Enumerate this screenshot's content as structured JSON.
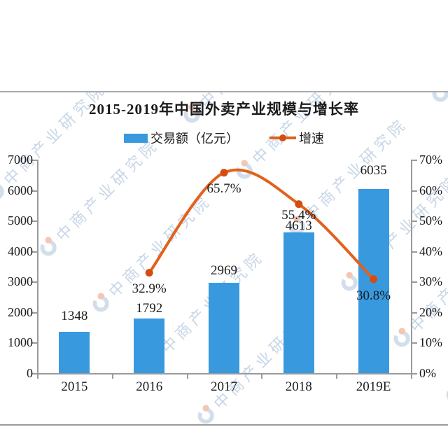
{
  "chart": {
    "title": "2015-2019年中国外卖产业规模与增长率",
    "legend": [
      {
        "label": "交易额（亿元）",
        "type": "bar",
        "color": "#3899df"
      },
      {
        "label": "增速",
        "type": "line",
        "color": "#e2611b"
      }
    ]
  },
  "watermark": {
    "text": "中商产业研究院",
    "logo": "cm-crescent-logo",
    "text_color": "#8fadd0",
    "logo_orange": "#e8916b",
    "logo_blue": "#a9bfd8"
  },
  "colors": {
    "bar": "#3899df",
    "line": "#e2611b",
    "marker": "#d54c12",
    "axis": "#9a9a9a",
    "text": "#1b1b1b",
    "divider": "#ababab"
  },
  "chart_data": {
    "type": "bar+line",
    "categories": [
      "2015",
      "2016",
      "2017",
      "2018",
      "2019E"
    ],
    "series": [
      {
        "name": "交易额（亿元）",
        "type": "bar",
        "axis": "left",
        "values": [
          1348,
          1792,
          2969,
          4613,
          6035
        ],
        "labels": [
          "1348",
          "1792",
          "2969",
          "4613",
          "6035"
        ],
        "color": "#3899df"
      },
      {
        "name": "增速",
        "type": "line",
        "axis": "right",
        "values": [
          null,
          32.9,
          65.7,
          55.4,
          30.8
        ],
        "labels": [
          "",
          "32.9%",
          "65.7%",
          "55.4%",
          "30.8%"
        ],
        "color": "#e2611b"
      }
    ],
    "left_axis": {
      "min": 0,
      "max": 7000,
      "step": 1000,
      "tick_labels": [
        "0",
        "1000",
        "2000",
        "3000",
        "4000",
        "5000",
        "6000",
        "7000"
      ]
    },
    "right_axis": {
      "min": 0,
      "max": 70,
      "step": 10,
      "tick_labels": [
        "0%",
        "10%",
        "20%",
        "30%",
        "40%",
        "50%",
        "60%",
        "70%"
      ]
    },
    "grid": false,
    "legend_position": "top"
  }
}
